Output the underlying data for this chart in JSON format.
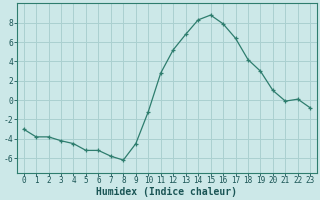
{
  "x": [
    0,
    1,
    2,
    3,
    4,
    5,
    6,
    7,
    8,
    9,
    10,
    11,
    12,
    13,
    14,
    15,
    16,
    17,
    18,
    19,
    20,
    21,
    22,
    23
  ],
  "y": [
    -3.0,
    -3.8,
    -3.8,
    -4.2,
    -4.5,
    -5.2,
    -5.2,
    -5.8,
    -6.2,
    -4.5,
    -1.2,
    2.8,
    5.2,
    6.8,
    8.3,
    8.8,
    7.9,
    6.4,
    4.2,
    3.0,
    1.0,
    -0.1,
    0.1,
    -0.8
  ],
  "xlabel": "Humidex (Indice chaleur)",
  "ylim": [
    -7.5,
    10.0
  ],
  "xlim": [
    -0.5,
    23.5
  ],
  "line_color": "#2e7d6e",
  "marker": "+",
  "bg_color": "#cce8e8",
  "grid_color": "#aad0d0",
  "yticks": [
    -6,
    -4,
    -2,
    0,
    2,
    4,
    6,
    8
  ],
  "xticks": [
    0,
    1,
    2,
    3,
    4,
    5,
    6,
    7,
    8,
    9,
    10,
    11,
    12,
    13,
    14,
    15,
    16,
    17,
    18,
    19,
    20,
    21,
    22,
    23
  ],
  "tick_fontsize": 5.5,
  "xlabel_fontsize": 7.0
}
